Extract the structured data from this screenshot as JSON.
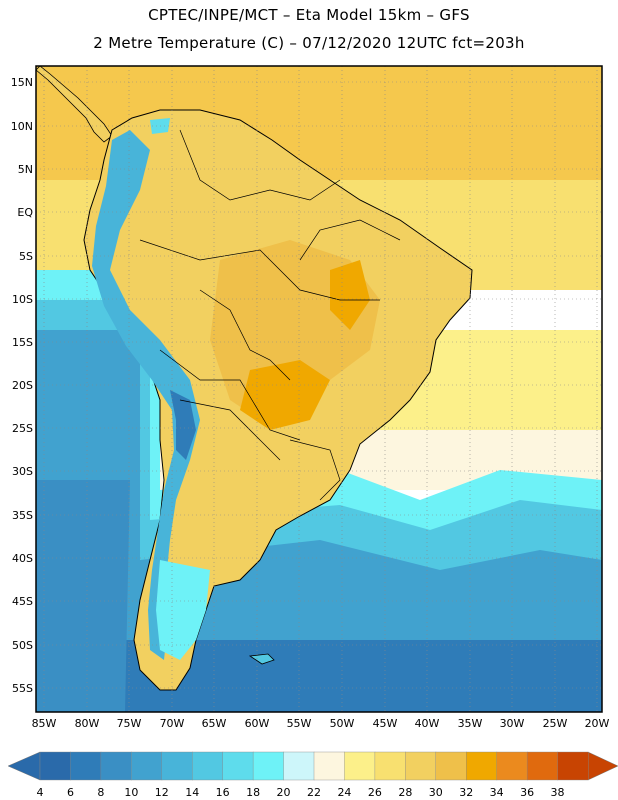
{
  "title_line1": "CPTEC/INPE/MCT –  Eta Model 15km – GFS",
  "title_line2": "2 Metre Temperature (C) – 07/12/2020 12UTC fct=203h",
  "lat_labels": [
    "15N",
    "10N",
    "5N",
    "EQ",
    "5S",
    "10S",
    "15S",
    "20S",
    "25S",
    "30S",
    "35S",
    "40S",
    "45S",
    "50S",
    "55S"
  ],
  "lon_labels": [
    "85W",
    "80W",
    "75W",
    "70W",
    "65W",
    "60W",
    "55W",
    "50W",
    "45W",
    "40W",
    "35W",
    "30W",
    "25W",
    "20W"
  ],
  "colorbar": {
    "labels": [
      "4",
      "6",
      "8",
      "10",
      "12",
      "14",
      "16",
      "18",
      "20",
      "22",
      "24",
      "26",
      "28",
      "30",
      "32",
      "34",
      "36",
      "38"
    ],
    "colors": [
      "#2a6aaa",
      "#2f7cb8",
      "#3a8fc4",
      "#41a2cf",
      "#48b4d9",
      "#52c8e2",
      "#5edcec",
      "#6ef2f7",
      "#cdf6fa",
      "#fdf6df",
      "#fcf08a",
      "#f8e070",
      "#f2d060",
      "#efc04a",
      "#f0a800",
      "#eb8a1e",
      "#e06a0e",
      "#c84402"
    ],
    "under_color": "#2a6aaa",
    "over_color": "#c84402"
  }
}
